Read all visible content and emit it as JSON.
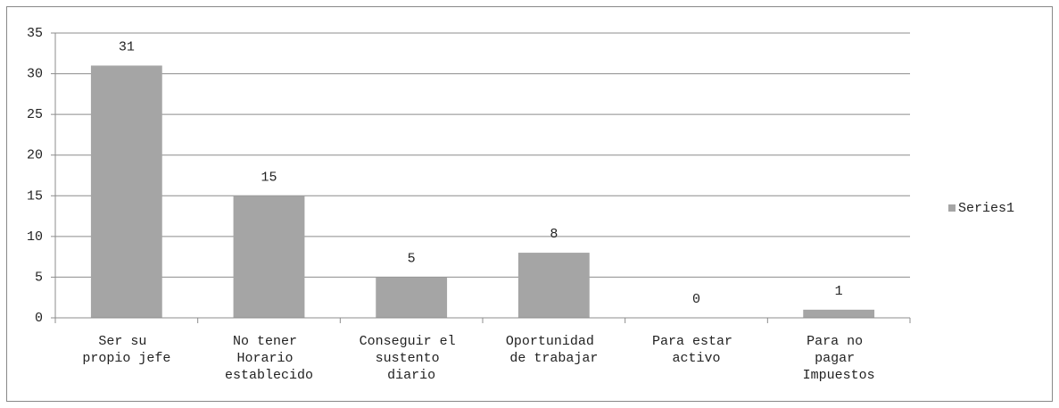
{
  "chart_data": {
    "type": "bar",
    "categories": [
      "Ser su propio jefe",
      "No tener Horario establecido",
      "Conseguir el sustento diario",
      "Oportunidad de trabajar",
      "Para estar activo",
      "Para no pagar Impuestos"
    ],
    "series": [
      {
        "name": "Series1",
        "color": "#a5a5a5",
        "values": [
          31,
          15,
          5,
          8,
          0,
          1
        ]
      }
    ],
    "ylim": [
      0,
      35
    ],
    "yticks": [
      0,
      5,
      10,
      15,
      20,
      25,
      30,
      35
    ],
    "grid": true,
    "legend": "right"
  }
}
